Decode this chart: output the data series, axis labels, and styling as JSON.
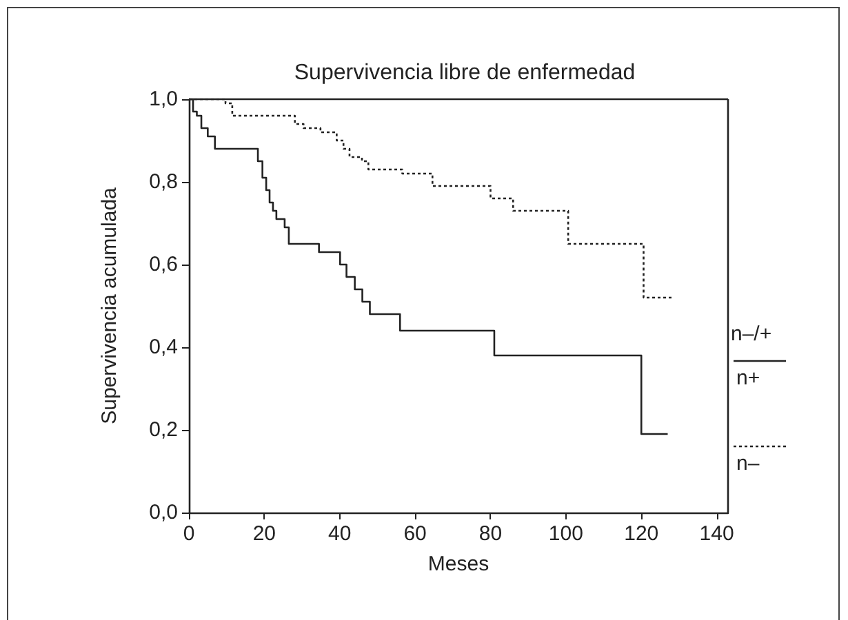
{
  "chart_data": {
    "type": "step",
    "title": "Supervivencia libre de enfermedad",
    "xlabel": "Meses",
    "ylabel": "Supervivencia acumulada",
    "legend_title": "n–/+",
    "legend": "right",
    "grid": false,
    "xlim": [
      0,
      143
    ],
    "xticks": [
      0,
      20,
      40,
      60,
      80,
      100,
      120,
      140
    ],
    "ylim": [
      0,
      1
    ],
    "yticks": [
      {
        "value": 0,
        "label": "0,0"
      },
      {
        "value": 0.2,
        "label": "0,2"
      },
      {
        "value": 0.4,
        "label": "0,4"
      },
      {
        "value": 0.6,
        "label": "0,6"
      },
      {
        "value": 0.8,
        "label": "0,8"
      },
      {
        "value": 1,
        "label": "1,0"
      }
    ],
    "series": [
      {
        "name": "n+",
        "color": "#222222",
        "line_style": "solid",
        "x": [
          0,
          1.1,
          2.1,
          3.3,
          5,
          6.9,
          18.3,
          19.5,
          20.5,
          21.4,
          22.3,
          23.2,
          25.4,
          26.5,
          34.5,
          40.1,
          41.8,
          44,
          46,
          48,
          56,
          81,
          120,
          127
        ],
        "values": [
          1,
          0.97,
          0.96,
          0.93,
          0.91,
          0.88,
          0.85,
          0.81,
          0.78,
          0.75,
          0.73,
          0.71,
          0.69,
          0.65,
          0.63,
          0.6,
          0.57,
          0.54,
          0.51,
          0.48,
          0.44,
          0.38,
          0.19,
          0.19
        ]
      },
      {
        "name": "n–",
        "color": "#222222",
        "line_style": "dotted",
        "x": [
          0,
          9.7,
          11.5,
          28.1,
          30.4,
          34.9,
          39.2,
          41,
          42.6,
          45.9,
          47.6,
          56.6,
          64.6,
          80,
          86,
          100.6,
          120.6,
          128
        ],
        "values": [
          1,
          0.99,
          0.96,
          0.94,
          0.93,
          0.92,
          0.9,
          0.88,
          0.86,
          0.85,
          0.83,
          0.82,
          0.79,
          0.76,
          0.73,
          0.65,
          0.52,
          0.52
        ]
      }
    ]
  }
}
